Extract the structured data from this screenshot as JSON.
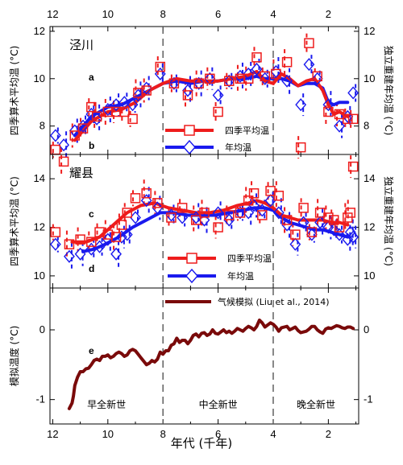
{
  "colors": {
    "red": "#ee1c1c",
    "blue": "#1a1aee",
    "brown": "#7a0a0a",
    "axis": "#000000",
    "dash": "#555555"
  },
  "top_axis_ticks": [
    "12",
    "10",
    "8",
    "6",
    "4",
    "2"
  ],
  "bottom_axis_ticks": [
    "12",
    "10",
    "8",
    "6",
    "4",
    "2"
  ],
  "xlabel": "年代 (千年)",
  "period_labels": [
    "早全新世",
    "中全新世",
    "晚全新世"
  ],
  "chart_data": [
    {
      "panel": "泾川",
      "type": "line",
      "ylabel_left": "四季算术平均温 (°C)",
      "ylabel_right": "独立重建年均温 (°C)",
      "xlim": [
        12.1,
        0.9
      ],
      "ylim": [
        6.8,
        12.2
      ],
      "yticks": [
        "8",
        "10",
        "12"
      ],
      "panel_letters": [
        "a",
        "b"
      ],
      "grid": false,
      "dividers_x": [
        8.0,
        4.0
      ],
      "legend": [
        {
          "name": "四季平均温",
          "color": "#ee1c1c",
          "marker": "square"
        },
        {
          "name": "年均温",
          "color": "#1a1aee",
          "marker": "diamond"
        }
      ],
      "series": [
        {
          "name": "四季平均温",
          "kind": "points",
          "x": [
            11.9,
            11.6,
            11.2,
            10.9,
            10.6,
            10.4,
            10.0,
            9.7,
            9.4,
            9.1,
            8.9,
            8.6,
            8.1,
            7.6,
            7.1,
            6.7,
            6.3,
            6.0,
            5.6,
            5.2,
            4.9,
            4.6,
            4.3,
            3.9,
            3.5,
            3.0,
            2.7,
            2.4,
            2.0,
            1.6,
            1.3,
            1.1
          ],
          "y": [
            7.0,
            6.5,
            7.6,
            7.9,
            8.8,
            8.4,
            8.6,
            8.6,
            8.6,
            8.3,
            9.4,
            9.5,
            10.5,
            9.8,
            9.3,
            9.8,
            10.0,
            8.6,
            9.9,
            10.0,
            10.0,
            10.9,
            10.1,
            10.2,
            10.7,
            7.1,
            11.5,
            10.1,
            8.6,
            8.5,
            8.3,
            8.3
          ]
        },
        {
          "name": "年均温",
          "kind": "points",
          "x": [
            11.9,
            11.6,
            11.2,
            10.9,
            10.6,
            10.4,
            10.0,
            9.7,
            9.4,
            9.1,
            8.9,
            8.6,
            8.1,
            7.6,
            7.1,
            6.7,
            6.3,
            6.0,
            5.6,
            5.2,
            4.9,
            4.6,
            4.3,
            3.9,
            3.5,
            3.0,
            2.7,
            2.4,
            2.0,
            1.6,
            1.3,
            1.1
          ],
          "y": [
            7.6,
            7.2,
            7.8,
            8.0,
            8.5,
            8.3,
            8.7,
            8.9,
            9.0,
            8.9,
            9.3,
            9.6,
            10.2,
            9.8,
            9.5,
            9.8,
            10.0,
            9.3,
            9.9,
            10.1,
            10.2,
            10.4,
            10.0,
            10.3,
            9.9,
            8.9,
            10.6,
            10.0,
            8.9,
            8.0,
            8.4,
            9.4
          ]
        },
        {
          "name": "四季平均温 平滑",
          "kind": "line",
          "x": [
            11.2,
            10.6,
            10.0,
            9.5,
            9.0,
            8.5,
            8.0,
            7.5,
            7.0,
            6.5,
            6.0,
            5.5,
            5.0,
            4.6,
            4.3,
            4.0,
            3.7,
            3.4,
            3.1,
            2.8,
            2.5,
            2.2,
            2.0,
            1.8,
            1.6,
            1.3
          ],
          "y": [
            7.4,
            8.2,
            8.6,
            8.7,
            9.0,
            9.5,
            9.8,
            10.0,
            9.9,
            9.9,
            9.9,
            10.0,
            10.1,
            10.3,
            9.9,
            9.8,
            10.2,
            10.0,
            9.7,
            9.9,
            10.0,
            9.5,
            8.9,
            8.5,
            8.6,
            8.4
          ]
        },
        {
          "name": "年均温 平滑",
          "kind": "line",
          "x": [
            11.2,
            10.6,
            10.0,
            9.5,
            9.0,
            8.5,
            8.0,
            7.5,
            7.0,
            6.5,
            6.0,
            5.5,
            5.0,
            4.6,
            4.3,
            4.0,
            3.7,
            3.4,
            3.1,
            2.8,
            2.5,
            2.2,
            2.0,
            1.8,
            1.6,
            1.3
          ],
          "y": [
            7.6,
            8.4,
            8.8,
            8.9,
            9.2,
            9.5,
            9.8,
            9.9,
            9.8,
            9.9,
            9.9,
            10.0,
            10.0,
            10.1,
            10.0,
            10.0,
            10.0,
            9.9,
            9.7,
            9.8,
            9.8,
            9.6,
            9.0,
            8.9,
            9.0,
            9.0
          ]
        }
      ]
    },
    {
      "panel": "耀县",
      "type": "line",
      "ylabel_left": "四季算术平均温 (°C)",
      "ylabel_right": "独立重建年均温 (°C)",
      "xlim": [
        12.1,
        0.9
      ],
      "ylim": [
        9.5,
        15.0
      ],
      "yticks": [
        "10",
        "12",
        "14"
      ],
      "panel_letters": [
        "c",
        "d"
      ],
      "grid": false,
      "dividers_x": [
        8.0,
        4.0
      ],
      "legend": [
        {
          "name": "四季平均温",
          "color": "#ee1c1c",
          "marker": "square"
        },
        {
          "name": "年均温",
          "color": "#1a1aee",
          "marker": "diamond"
        }
      ],
      "series": [
        {
          "name": "四季平均温",
          "kind": "points",
          "x": [
            11.9,
            11.4,
            11.0,
            10.6,
            10.3,
            10.0,
            9.7,
            9.5,
            9.3,
            9.0,
            8.6,
            8.2,
            7.7,
            7.3,
            6.8,
            6.5,
            6.0,
            5.6,
            5.2,
            4.9,
            4.7,
            4.4,
            4.1,
            3.8,
            3.5,
            3.2,
            2.9,
            2.6,
            2.3,
            2.0,
            1.8,
            1.6,
            1.3,
            1.2,
            1.1
          ],
          "y": [
            11.8,
            11.3,
            11.5,
            11.4,
            11.8,
            11.7,
            11.6,
            12.1,
            12.6,
            13.2,
            13.4,
            13.0,
            12.4,
            12.8,
            12.3,
            12.6,
            12.0,
            12.5,
            12.6,
            13.1,
            13.4,
            12.5,
            13.5,
            13.3,
            12.3,
            11.7,
            12.8,
            11.8,
            12.6,
            12.4,
            12.3,
            12.0,
            12.4,
            12.6,
            14.5
          ]
        },
        {
          "name": "年均温",
          "kind": "points",
          "x": [
            11.9,
            11.4,
            11.0,
            10.6,
            10.3,
            10.0,
            9.7,
            9.5,
            9.3,
            9.0,
            8.6,
            8.2,
            7.7,
            7.3,
            6.8,
            6.5,
            6.0,
            5.6,
            5.2,
            4.9,
            4.7,
            4.4,
            4.1,
            3.8,
            3.5,
            3.2,
            2.9,
            2.6,
            2.3,
            2.0,
            1.8,
            1.6,
            1.3,
            1.2,
            1.1
          ],
          "y": [
            11.3,
            10.8,
            10.9,
            11.1,
            11.2,
            11.5,
            10.9,
            11.6,
            11.7,
            12.4,
            13.1,
            12.8,
            12.5,
            12.4,
            12.4,
            12.3,
            12.6,
            12.3,
            12.6,
            12.6,
            12.9,
            12.7,
            13.1,
            12.6,
            12.1,
            11.3,
            12.2,
            11.7,
            12.2,
            12.0,
            11.9,
            11.7,
            11.5,
            11.8,
            11.6
          ]
        },
        {
          "name": "四季平均温 平滑",
          "kind": "line",
          "x": [
            11.3,
            10.8,
            10.3,
            9.8,
            9.3,
            8.8,
            8.3,
            7.8,
            7.3,
            6.8,
            6.3,
            5.8,
            5.3,
            4.9,
            4.6,
            4.3,
            4.0,
            3.7,
            3.4,
            3.1,
            2.8,
            2.5,
            2.2,
            1.9,
            1.6,
            1.3
          ],
          "y": [
            11.4,
            11.4,
            11.6,
            12.1,
            12.6,
            12.9,
            13.0,
            12.8,
            12.7,
            12.6,
            12.6,
            12.7,
            12.9,
            13.0,
            13.1,
            13.0,
            12.8,
            12.5,
            12.4,
            12.3,
            12.3,
            12.3,
            12.3,
            12.2,
            12.2,
            12.1
          ]
        },
        {
          "name": "年均温 平滑",
          "kind": "line",
          "x": [
            10.9,
            10.5,
            10.1,
            9.6,
            9.1,
            8.6,
            8.1,
            7.6,
            7.1,
            6.6,
            6.1,
            5.6,
            5.1,
            4.7,
            4.3,
            4.0,
            3.7,
            3.4,
            3.1,
            2.8,
            2.5,
            2.2,
            1.9,
            1.6,
            1.3
          ],
          "y": [
            11.0,
            11.1,
            11.3,
            11.6,
            12.0,
            12.3,
            12.6,
            12.6,
            12.5,
            12.5,
            12.5,
            12.6,
            12.7,
            12.8,
            12.8,
            12.7,
            12.4,
            12.2,
            12.1,
            12.0,
            11.9,
            11.9,
            11.8,
            11.7,
            11.6
          ]
        }
      ]
    },
    {
      "panel": "e",
      "type": "line",
      "ylabel_left": "模拟温度 (°C)",
      "xlim": [
        12.1,
        0.9
      ],
      "ylim": [
        -1.35,
        0.6
      ],
      "yticks": [
        "-1",
        "0"
      ],
      "grid": false,
      "dividers_x": [
        8.0,
        4.0
      ],
      "legend": [
        {
          "name": "气候模拟 (Liu et al., 2014)",
          "color": "#7a0a0a"
        }
      ],
      "series": [
        {
          "name": "气候模拟 (Liu et al., 2014)",
          "kind": "line",
          "x": [
            11.4,
            11.3,
            11.25,
            11.2,
            11.1,
            11.0,
            10.9,
            10.8,
            10.7,
            10.6,
            10.5,
            10.4,
            10.3,
            10.2,
            10.1,
            10.0,
            9.9,
            9.8,
            9.7,
            9.6,
            9.5,
            9.4,
            9.3,
            9.2,
            9.1,
            9.0,
            8.9,
            8.8,
            8.7,
            8.6,
            8.5,
            8.4,
            8.3,
            8.2,
            8.1,
            8.0,
            7.9,
            7.8,
            7.7,
            7.6,
            7.5,
            7.4,
            7.3,
            7.2,
            7.1,
            7.0,
            6.9,
            6.8,
            6.7,
            6.6,
            6.5,
            6.4,
            6.3,
            6.2,
            6.1,
            6.0,
            5.9,
            5.8,
            5.7,
            5.6,
            5.5,
            5.4,
            5.3,
            5.2,
            5.1,
            5.0,
            4.9,
            4.8,
            4.7,
            4.6,
            4.5,
            4.4,
            4.3,
            4.2,
            4.1,
            4.0,
            3.9,
            3.8,
            3.7,
            3.6,
            3.5,
            3.4,
            3.3,
            3.2,
            3.1,
            3.0,
            2.9,
            2.8,
            2.7,
            2.6,
            2.5,
            2.4,
            2.3,
            2.2,
            2.1,
            2.0,
            1.9,
            1.8,
            1.7,
            1.6,
            1.5,
            1.4,
            1.3,
            1.2,
            1.1
          ],
          "y": [
            -1.13,
            -1.05,
            -0.95,
            -0.8,
            -0.68,
            -0.6,
            -0.6,
            -0.56,
            -0.55,
            -0.5,
            -0.44,
            -0.42,
            -0.44,
            -0.38,
            -0.38,
            -0.36,
            -0.4,
            -0.38,
            -0.34,
            -0.32,
            -0.34,
            -0.38,
            -0.36,
            -0.3,
            -0.28,
            -0.3,
            -0.35,
            -0.4,
            -0.45,
            -0.5,
            -0.48,
            -0.44,
            -0.46,
            -0.42,
            -0.32,
            -0.35,
            -0.3,
            -0.3,
            -0.22,
            -0.2,
            -0.12,
            -0.18,
            -0.15,
            -0.15,
            -0.2,
            -0.15,
            -0.08,
            -0.06,
            -0.1,
            -0.05,
            -0.04,
            -0.08,
            -0.06,
            0.0,
            -0.05,
            -0.06,
            -0.03,
            0.0,
            -0.04,
            -0.02,
            -0.05,
            -0.02,
            0.02,
            0.0,
            -0.02,
            0.02,
            0.05,
            0.03,
            0.0,
            0.05,
            0.14,
            0.1,
            0.04,
            0.07,
            0.1,
            0.08,
            0.04,
            -0.02,
            0.03,
            0.04,
            0.05,
            0.0,
            0.02,
            0.04,
            -0.01,
            -0.04,
            -0.03,
            -0.02,
            0.01,
            0.05,
            0.05,
            0.0,
            -0.03,
            -0.05,
            0.01,
            0.03,
            0.02,
            0.04,
            0.06,
            0.05,
            0.03,
            0.02,
            0.04,
            0.04,
            0.02
          ]
        }
      ]
    }
  ]
}
